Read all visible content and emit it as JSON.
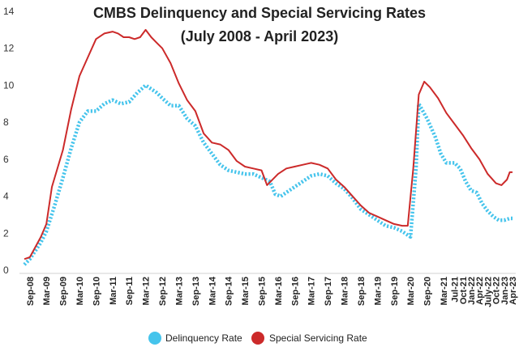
{
  "chart_data": {
    "type": "line",
    "title": "CMBS Delinquency and Special Servicing Rates",
    "subtitle": "(July 2008 - April 2023)",
    "xlabel": "",
    "ylabel": "",
    "ylim": [
      0,
      14
    ],
    "yticks": [
      0,
      2,
      4,
      6,
      8,
      10,
      12,
      14
    ],
    "x_start": "Jul 2008",
    "x_end": "Apr 2023",
    "xtick_labels": [
      "Sep-08",
      "Mar-09",
      "Sep-09",
      "Mar-10",
      "Sep-10",
      "Mar-11",
      "Sep-11",
      "Mar-12",
      "Sep-12",
      "Mar-13",
      "Sep-13",
      "Mar-14",
      "Sep-14",
      "Mar-15",
      "Sep-15",
      "Mar-16",
      "Sep-16",
      "Mar-17",
      "Sep-17",
      "Mar-18",
      "Sep-18",
      "Mar-19",
      "Sep-19",
      "Mar-20",
      "Sep-20",
      "Mar-21",
      "Jul-21",
      "Oct-21",
      "Jan-22",
      "Apr-22",
      "July-22",
      "Oct-22",
      "Jan-23",
      "Apr-23"
    ],
    "grid": false,
    "legend_position": "bottom",
    "series": [
      {
        "name": "Delinquency Rate",
        "color": "#45c4ec",
        "style": "dotted",
        "points": [
          [
            "Jul 2008",
            0.3
          ],
          [
            "Sep 2008",
            0.6
          ],
          [
            "Jan 2009",
            1.5
          ],
          [
            "Mar 2009",
            2.1
          ],
          [
            "Jun 2009",
            3.5
          ],
          [
            "Sep 2009",
            5.0
          ],
          [
            "Dec 2009",
            6.6
          ],
          [
            "Mar 2010",
            8.0
          ],
          [
            "Jun 2010",
            8.6
          ],
          [
            "Sep 2010",
            8.6
          ],
          [
            "Dec 2010",
            9.0
          ],
          [
            "Mar 2011",
            9.2
          ],
          [
            "Jun 2011",
            9.0
          ],
          [
            "Sep 2011",
            9.1
          ],
          [
            "Dec 2011",
            9.6
          ],
          [
            "Mar 2012",
            10.0
          ],
          [
            "Jul 2012",
            9.6
          ],
          [
            "Sep 2012",
            9.3
          ],
          [
            "Dec 2012",
            8.9
          ],
          [
            "Mar 2013",
            8.9
          ],
          [
            "Jun 2013",
            8.2
          ],
          [
            "Sep 2013",
            7.8
          ],
          [
            "Dec 2013",
            6.9
          ],
          [
            "Mar 2014",
            6.3
          ],
          [
            "Jun 2014",
            5.7
          ],
          [
            "Sep 2014",
            5.4
          ],
          [
            "Dec 2014",
            5.3
          ],
          [
            "Mar 2015",
            5.2
          ],
          [
            "Jun 2015",
            5.2
          ],
          [
            "Sep 2015",
            5.0
          ],
          [
            "Dec 2015",
            4.8
          ],
          [
            "Feb 2016",
            4.1
          ],
          [
            "Apr 2016",
            4.0
          ],
          [
            "Jul 2016",
            4.3
          ],
          [
            "Sep 2016",
            4.5
          ],
          [
            "Dec 2016",
            4.8
          ],
          [
            "Mar 2017",
            5.1
          ],
          [
            "Jun 2017",
            5.2
          ],
          [
            "Sep 2017",
            5.1
          ],
          [
            "Dec 2017",
            4.7
          ],
          [
            "Mar 2018",
            4.4
          ],
          [
            "Jun 2018",
            3.9
          ],
          [
            "Sep 2018",
            3.3
          ],
          [
            "Dec 2018",
            3.0
          ],
          [
            "Mar 2019",
            2.7
          ],
          [
            "Jun 2019",
            2.4
          ],
          [
            "Sep 2019",
            2.3
          ],
          [
            "Dec 2019",
            2.1
          ],
          [
            "Mar 2020",
            1.8
          ],
          [
            "May 2020",
            5.5
          ],
          [
            "Jun 2020",
            9.0
          ],
          [
            "Sep 2020",
            8.2
          ],
          [
            "Dec 2020",
            7.2
          ],
          [
            "Feb 2021",
            6.3
          ],
          [
            "Apr 2021",
            5.8
          ],
          [
            "Jul 2021",
            5.8
          ],
          [
            "Sep 2021",
            5.5
          ],
          [
            "Nov 2021",
            4.8
          ],
          [
            "Jan 2022",
            4.3
          ],
          [
            "Mar 2022",
            4.2
          ],
          [
            "May 2022",
            3.6
          ],
          [
            "Jul 2022",
            3.2
          ],
          [
            "Sep 2022",
            2.9
          ],
          [
            "Nov 2022",
            2.7
          ],
          [
            "Jan 2023",
            2.7
          ],
          [
            "Mar 2023",
            2.8
          ],
          [
            "Apr 2023",
            2.8
          ]
        ]
      },
      {
        "name": "Special Servicing Rate",
        "color": "#cc2a2a",
        "style": "solid",
        "points": [
          [
            "Jul 2008",
            0.6
          ],
          [
            "Sep 2008",
            0.7
          ],
          [
            "Jan 2009",
            1.8
          ],
          [
            "Mar 2009",
            2.5
          ],
          [
            "May 2009",
            4.5
          ],
          [
            "Sep 2009",
            6.5
          ],
          [
            "Dec 2009",
            8.7
          ],
          [
            "Mar 2010",
            10.5
          ],
          [
            "Jun 2010",
            11.5
          ],
          [
            "Sep 2010",
            12.5
          ],
          [
            "Dec 2010",
            12.8
          ],
          [
            "Mar 2011",
            12.9
          ],
          [
            "May 2011",
            12.8
          ],
          [
            "Jul 2011",
            12.6
          ],
          [
            "Sep 2011",
            12.6
          ],
          [
            "Nov 2011",
            12.5
          ],
          [
            "Jan 2012",
            12.6
          ],
          [
            "Mar 2012",
            13.0
          ],
          [
            "May 2012",
            12.6
          ],
          [
            "Jul 2012",
            12.3
          ],
          [
            "Sep 2012",
            12.0
          ],
          [
            "Dec 2012",
            11.2
          ],
          [
            "Mar 2013",
            10.1
          ],
          [
            "Jun 2013",
            9.2
          ],
          [
            "Sep 2013",
            8.6
          ],
          [
            "Dec 2013",
            7.4
          ],
          [
            "Mar 2014",
            6.9
          ],
          [
            "Jun 2014",
            6.8
          ],
          [
            "Sep 2014",
            6.5
          ],
          [
            "Dec 2014",
            5.9
          ],
          [
            "Mar 2015",
            5.6
          ],
          [
            "Jun 2015",
            5.5
          ],
          [
            "Sep 2015",
            5.4
          ],
          [
            "Nov 2015",
            4.6
          ],
          [
            "Mar 2016",
            5.2
          ],
          [
            "Jun 2016",
            5.5
          ],
          [
            "Sep 2016",
            5.6
          ],
          [
            "Dec 2016",
            5.7
          ],
          [
            "Mar 2017",
            5.8
          ],
          [
            "Jun 2017",
            5.7
          ],
          [
            "Sep 2017",
            5.5
          ],
          [
            "Dec 2017",
            4.9
          ],
          [
            "Mar 2018",
            4.5
          ],
          [
            "Jun 2018",
            4.0
          ],
          [
            "Sep 2018",
            3.5
          ],
          [
            "Dec 2018",
            3.1
          ],
          [
            "Mar 2019",
            2.9
          ],
          [
            "Jun 2019",
            2.7
          ],
          [
            "Sep 2019",
            2.5
          ],
          [
            "Dec 2019",
            2.4
          ],
          [
            "Feb 2020",
            2.4
          ],
          [
            "Apr 2020",
            5.5
          ],
          [
            "Jun 2020",
            9.5
          ],
          [
            "Aug 2020",
            10.2
          ],
          [
            "Oct 2020",
            9.9
          ],
          [
            "Jan 2021",
            9.3
          ],
          [
            "Apr 2021",
            8.5
          ],
          [
            "Jul 2021",
            7.9
          ],
          [
            "Oct 2021",
            7.3
          ],
          [
            "Jan 2022",
            6.6
          ],
          [
            "Apr 2022",
            6.0
          ],
          [
            "Jul 2022",
            5.2
          ],
          [
            "Oct 2022",
            4.7
          ],
          [
            "Dec 2022",
            4.6
          ],
          [
            "Feb 2023",
            4.9
          ],
          [
            "Mar 2023",
            5.3
          ],
          [
            "Apr 2023",
            5.3
          ]
        ]
      }
    ]
  }
}
